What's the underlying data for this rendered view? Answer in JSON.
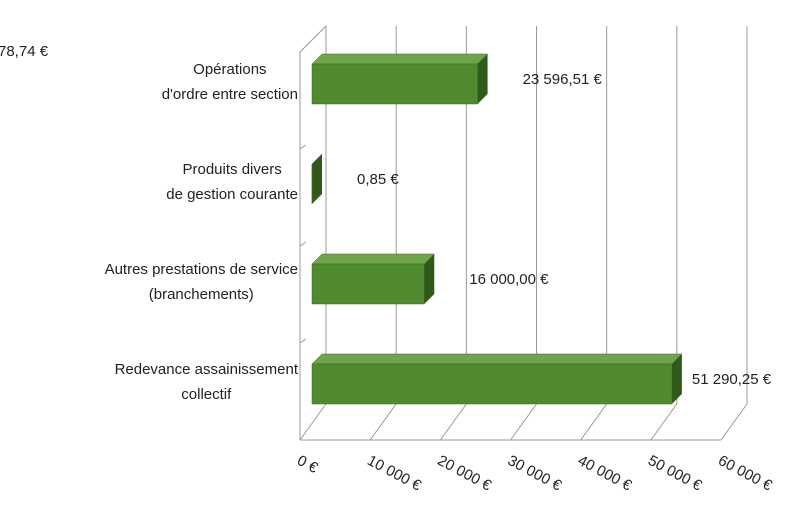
{
  "chart_data": {
    "type": "bar",
    "orientation": "horizontal",
    "annotations": [
      "78,74 €"
    ],
    "categories": [
      [
        "Opérations",
        "d'ordre entre section"
      ],
      [
        "Produits divers",
        "de gestion courante"
      ],
      [
        "Autres prestations de service",
        "(branchements)"
      ],
      [
        "Redevance assainissement",
        "collectif"
      ]
    ],
    "values": [
      23596.51,
      0.85,
      16000,
      51290.25
    ],
    "value_labels": [
      "23 596,51 €",
      "0,85 €",
      "16 000,00 €",
      "51 290,25 €"
    ],
    "color": "#4f8a2f",
    "xlim": [
      0,
      60000
    ],
    "xticks": [
      {
        "value": 0,
        "label": "0 €"
      },
      {
        "value": 10000,
        "label": "10 000 €"
      },
      {
        "value": 20000,
        "label": "20 000 €"
      },
      {
        "value": 30000,
        "label": "30 000 €"
      },
      {
        "value": 40000,
        "label": "40 000 €"
      },
      {
        "value": 50000,
        "label": "50 000 €"
      },
      {
        "value": 60000,
        "label": "60 000 €"
      }
    ],
    "grid": true
  }
}
